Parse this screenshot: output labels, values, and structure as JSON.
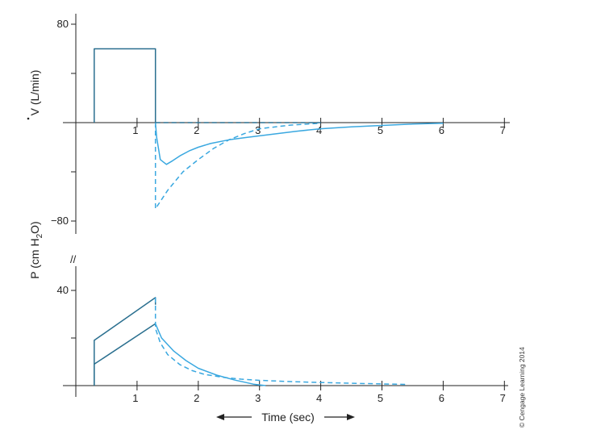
{
  "chart_data": [
    {
      "type": "line",
      "ylabel": "V (L/min)",
      "ylabel_has_dot": true,
      "xlim": [
        0,
        7
      ],
      "ylim": [
        -80,
        80
      ],
      "x_ticks": [
        1,
        2,
        3,
        4,
        5,
        6,
        7
      ],
      "x_tick_labels": [
        "1",
        "2",
        "3",
        "4",
        "5",
        "6",
        "7"
      ],
      "y_ticks": [
        80,
        40,
        -40,
        -80
      ],
      "y_tick_labels": [
        "80",
        "",
        "",
        "−80"
      ],
      "colors": {
        "inspiration": "#2a6f8f",
        "expiration": "#3aa8e0",
        "axis": "#222222"
      },
      "series": [
        {
          "style": "solid",
          "color_key": "inspiration",
          "x": [
            0.3,
            0.3,
            1.3,
            1.3
          ],
          "y": [
            0,
            60,
            60,
            0
          ]
        },
        {
          "style": "solid",
          "color_key": "expiration",
          "x": [
            1.3,
            1.32,
            1.38,
            1.48,
            1.58,
            1.7,
            1.85,
            2.0,
            2.2,
            2.5,
            2.8,
            3.2,
            3.6,
            4.0,
            4.5,
            5.0,
            5.5,
            6.0
          ],
          "y": [
            0,
            -12,
            -30,
            -34,
            -31,
            -27,
            -23,
            -20,
            -17,
            -14,
            -12,
            -9.5,
            -7,
            -5,
            -3.5,
            -2.3,
            -1.2,
            -0.5
          ]
        },
        {
          "style": "dashed",
          "color_key": "expiration",
          "x": [
            1.3,
            1.3,
            1.5,
            1.75,
            2.0,
            2.25,
            2.5,
            2.75,
            3.0,
            3.5,
            4.0
          ],
          "y": [
            0,
            -70,
            -55,
            -40,
            -30,
            -21,
            -14,
            -9,
            -5,
            -2,
            -0.5
          ]
        },
        {
          "style": "dashed",
          "color_key": "inspiration",
          "x": [
            1.3,
            4.0
          ],
          "y": [
            0,
            0
          ]
        }
      ]
    },
    {
      "type": "line",
      "ylabel_main": "P (cm H",
      "ylabel_sub": "2",
      "ylabel_end": "O)",
      "xlabel": "Time (sec)",
      "xlim": [
        0,
        7
      ],
      "ylim": [
        0,
        40
      ],
      "x_ticks": [
        1,
        2,
        3,
        4,
        5,
        6,
        7
      ],
      "x_tick_labels": [
        "1",
        "2",
        "3",
        "4",
        "5",
        "6",
        "7"
      ],
      "y_ticks": [
        40,
        20
      ],
      "y_tick_labels": [
        "40",
        ""
      ],
      "colors": {
        "inspiration": "#2a6f8f",
        "expiration": "#3aa8e0",
        "axis": "#222222"
      },
      "series": [
        {
          "style": "solid",
          "color_key": "inspiration",
          "x": [
            0.3,
            0.3,
            1.3,
            1.3
          ],
          "y": [
            0,
            19,
            37,
            34
          ]
        },
        {
          "style": "solid",
          "color_key": "inspiration",
          "x": [
            0.3,
            0.3,
            1.3
          ],
          "y": [
            0,
            9,
            26
          ]
        },
        {
          "style": "solid",
          "color_key": "expiration",
          "x": [
            1.3,
            1.4,
            1.6,
            1.8,
            2.0,
            2.3,
            2.6,
            2.9,
            3.1
          ],
          "y": [
            26,
            20,
            14.5,
            10.5,
            7.3,
            4.4,
            2.3,
            0.6,
            0
          ]
        },
        {
          "style": "dashed",
          "color_key": "expiration",
          "x": [
            1.3,
            1.3,
            1.38,
            1.5,
            1.7,
            1.9,
            2.1,
            2.4,
            2.7,
            3.0,
            3.5,
            4.0,
            4.5,
            5.0,
            5.4
          ],
          "y": [
            37,
            24,
            18,
            13,
            8.8,
            6.3,
            4.7,
            3.5,
            2.7,
            2.2,
            1.7,
            1.3,
            1.0,
            0.7,
            0.5
          ]
        }
      ]
    }
  ],
  "arrows": {
    "left": "←",
    "right": "→"
  },
  "axis_break_mark": "//",
  "copyright": "© Cengage Learning 2014"
}
